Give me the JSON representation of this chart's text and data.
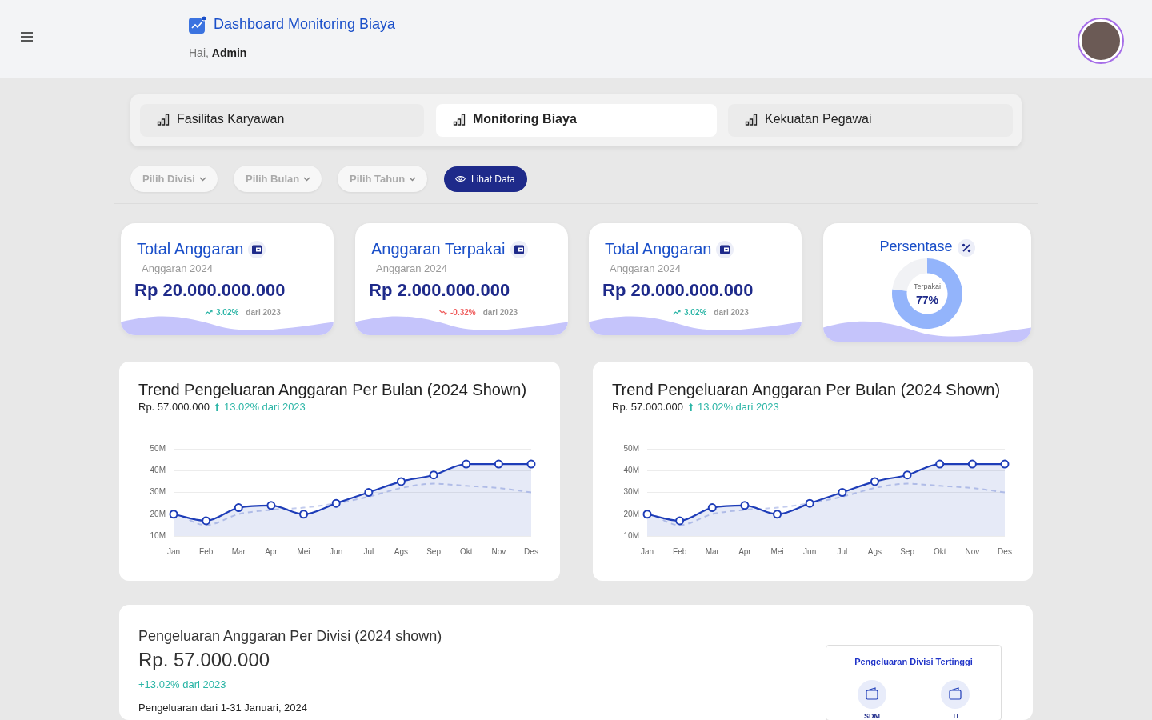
{
  "chart_data": [
    {
      "type": "other",
      "title": "Dashboard Monitoring Biaya",
      "annotations": [
        "Hai,",
        "Admin",
        "Fasilitas Karyawan",
        "Monitoring Biaya",
        "Kekuatan Pegawai",
        "Pilih Divisi",
        "Pilih Bulan",
        "Pilih Tahun",
        "Lihat Data"
      ]
    },
    {
      "type": "other",
      "title": "Total Anggaran",
      "subtitle": "Anggaran 2024",
      "annotations": [
        "Rp 20.000.000.000",
        "3.02%",
        "dari 2023"
      ]
    },
    {
      "type": "other",
      "title": "Anggaran Terpakai",
      "subtitle": "Anggaran 2024",
      "annotations": [
        "Rp 2.000.000.000",
        "-0.32%",
        "dari 2023"
      ]
    },
    {
      "type": "other",
      "title": "Total Anggaran",
      "subtitle": "Anggaran 2024",
      "annotations": [
        "Rp 20.000.000.000",
        "3.02%",
        "dari 2023"
      ]
    },
    {
      "type": "donut",
      "title": "Persentase",
      "categories": [
        "Terpakai",
        null
      ],
      "values": [
        77,
        23
      ],
      "colors": [
        "#93b4fb",
        "#f1f2f5"
      ],
      "value_labels": [
        "77%",
        null
      ]
    },
    {
      "type": "line",
      "title": "Trend Pengeluaran Anggaran Per Bulan (2024 Shown)",
      "subtitle": "Rp. 57.000.000",
      "annotations": [
        "13.02% dari 2023"
      ],
      "categories": [
        "Jan",
        "Feb",
        "Mar",
        "Apr",
        "Mei",
        "Jun",
        "Jul",
        "Ags",
        "Sep",
        "Okt",
        "Nov",
        "Des"
      ],
      "ylim": [
        10,
        50
      ],
      "yticks": [
        {
          "value": 10,
          "label": "10M"
        },
        {
          "value": 20,
          "label": "20M"
        },
        {
          "value": 30,
          "label": "30M"
        },
        {
          "value": 40,
          "label": "40M"
        },
        {
          "value": 50,
          "label": "50M"
        }
      ],
      "grid": "y",
      "series": [
        {
          "type": "area",
          "color": "#1e3db8",
          "marker": "circle",
          "line_style": "solid",
          "values": [
            20,
            17,
            23,
            24,
            20,
            25,
            30,
            35,
            38,
            43,
            43,
            43
          ]
        },
        {
          "type": "line",
          "color": "#c3ccee",
          "marker": "none",
          "line_style": "dashed",
          "values": [
            21,
            15,
            20,
            22,
            23,
            25,
            28,
            32,
            34,
            33,
            32,
            30
          ]
        }
      ]
    },
    {
      "type": "line",
      "title": "Trend Pengeluaran Anggaran Per Bulan (2024 Shown)",
      "subtitle": "Rp. 57.000.000",
      "annotations": [
        "13.02% dari 2023"
      ],
      "categories": [
        "Jan",
        "Feb",
        "Mar",
        "Apr",
        "Mei",
        "Jun",
        "Jul",
        "Ags",
        "Sep",
        "Okt",
        "Nov",
        "Des"
      ],
      "ylim": [
        10,
        50
      ],
      "yticks": [
        {
          "value": 10,
          "label": "10M"
        },
        {
          "value": 20,
          "label": "20M"
        },
        {
          "value": 30,
          "label": "30M"
        },
        {
          "value": 40,
          "label": "40M"
        },
        {
          "value": 50,
          "label": "50M"
        }
      ],
      "grid": "y",
      "series": [
        {
          "type": "area",
          "color": "#1e3db8",
          "marker": "circle",
          "line_style": "solid",
          "values": [
            20,
            17,
            23,
            24,
            20,
            25,
            30,
            35,
            38,
            43,
            43,
            43
          ]
        },
        {
          "type": "line",
          "color": "#c3ccee",
          "marker": "none",
          "line_style": "dashed",
          "values": [
            21,
            15,
            20,
            22,
            23,
            25,
            28,
            32,
            34,
            33,
            32,
            30
          ]
        }
      ]
    },
    {
      "type": "other",
      "title": "Pengeluaran Anggaran Per Divisi (2024 shown)",
      "annotations": [
        "Rp. 57.000.000",
        "+13.02% dari 2023",
        "Pengeluaran dari 1-31 Januari, 2024",
        "Pengeluaran Divisi Tertinggi",
        "SDM",
        "TI"
      ]
    }
  ]
}
